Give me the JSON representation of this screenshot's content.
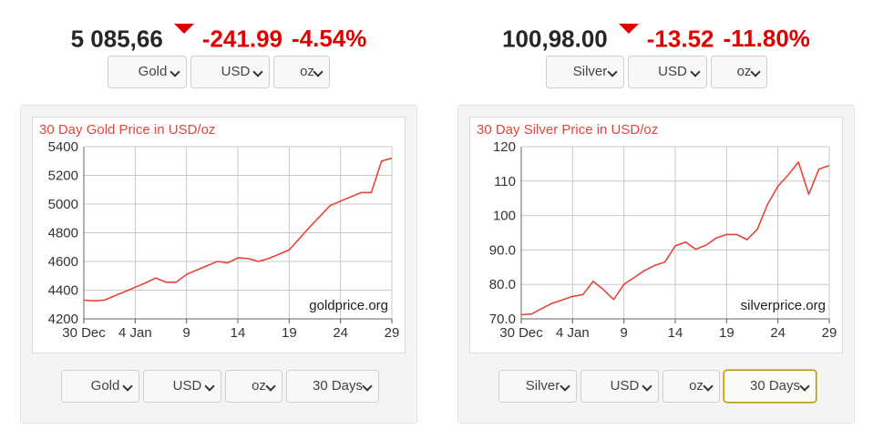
{
  "gold": {
    "price": "5 085,66",
    "change": "-241.99",
    "change_pct": "-4.54%",
    "metal": "Gold",
    "currency": "USD",
    "unit": "oz",
    "range": "30 Days",
    "watermark": "goldprice.org"
  },
  "silver": {
    "price": "100,98.00",
    "change": "-13.52",
    "change_pct": "-11.80%",
    "metal": "Silver",
    "currency": "USD",
    "unit": "oz",
    "range": "30 Days",
    "watermark": "silverprice.org"
  },
  "colors": {
    "down": "#e00000",
    "line": "#e8443a",
    "grid": "#c8c8c8"
  },
  "icons": {
    "down_arrow": "triangle-down",
    "select_caret": "chevron-down"
  },
  "chart_data": [
    {
      "type": "line",
      "title": "30 Day Gold Price in USD/oz",
      "x_ticks": [
        "30 Dec",
        "4 Jan",
        "9",
        "14",
        "19",
        "24",
        "29"
      ],
      "y_ticks": [
        "5400",
        "5200",
        "5000",
        "4800",
        "4600",
        "4400",
        "4200"
      ],
      "xlim": [
        "Dec 30",
        "Jan 29"
      ],
      "ylim": [
        4200,
        5400
      ],
      "grid": true,
      "series": [
        {
          "x": [
            "Dec 30",
            "Dec 31",
            "Jan 1",
            "Jan 2",
            "Jan 3",
            "Jan 4",
            "Jan 5",
            "Jan 6",
            "Jan 7",
            "Jan 8",
            "Jan 9",
            "Jan 10",
            "Jan 11",
            "Jan 12",
            "Jan 13",
            "Jan 14",
            "Jan 15",
            "Jan 16",
            "Jan 17",
            "Jan 18",
            "Jan 19",
            "Jan 20",
            "Jan 21",
            "Jan 22",
            "Jan 23",
            "Jan 24",
            "Jan 25",
            "Jan 26",
            "Jan 27",
            "Jan 28",
            "Jan 29"
          ],
          "values": [
            4330,
            4326,
            4330,
            4360,
            4390,
            4420,
            4450,
            4485,
            4455,
            4455,
            4510,
            4540,
            4570,
            4600,
            4590,
            4625,
            4620,
            4600,
            4620,
            4650,
            4680,
            4760,
            4840,
            4915,
            4990,
            5020,
            5050,
            5080,
            5080,
            5300,
            5320
          ]
        }
      ]
    },
    {
      "type": "line",
      "title": "30 Day Silver Price in USD/oz",
      "x_ticks": [
        "30 Dec",
        "4 Jan",
        "9",
        "14",
        "19",
        "24",
        "29"
      ],
      "y_ticks": [
        "120",
        "110",
        "100",
        "90.0",
        "80.0",
        "70.0"
      ],
      "xlim": [
        "Dec 30",
        "Jan 29"
      ],
      "ylim": [
        70,
        120
      ],
      "grid": true,
      "series": [
        {
          "x": [
            "Dec 30",
            "Dec 31",
            "Jan 1",
            "Jan 2",
            "Jan 3",
            "Jan 4",
            "Jan 5",
            "Jan 6",
            "Jan 7",
            "Jan 8",
            "Jan 9",
            "Jan 10",
            "Jan 11",
            "Jan 12",
            "Jan 13",
            "Jan 14",
            "Jan 15",
            "Jan 16",
            "Jan 17",
            "Jan 18",
            "Jan 19",
            "Jan 20",
            "Jan 21",
            "Jan 22",
            "Jan 23",
            "Jan 24",
            "Jan 25",
            "Jan 26",
            "Jan 27",
            "Jan 28",
            "Jan 29"
          ],
          "values": [
            71.2,
            71.4,
            73,
            74.5,
            75.5,
            76.5,
            77,
            80.9,
            78.5,
            75.6,
            80,
            82,
            84,
            85.5,
            86.5,
            91.2,
            92.3,
            90.2,
            91.4,
            93.5,
            94.5,
            94.5,
            93,
            96,
            103.3,
            108.5,
            111.8,
            115.5,
            106.2,
            113.5,
            114.5
          ]
        }
      ]
    }
  ]
}
